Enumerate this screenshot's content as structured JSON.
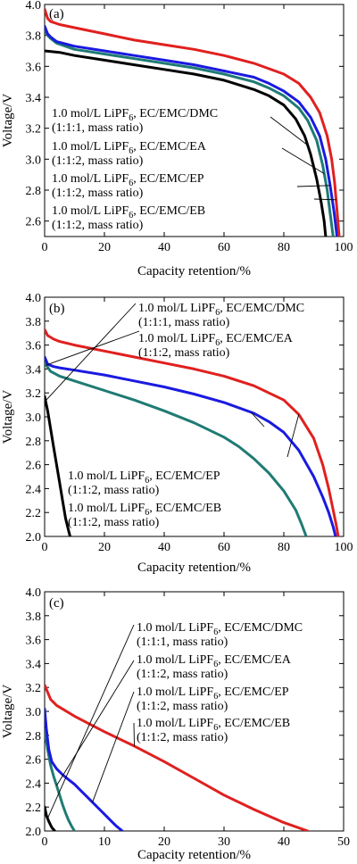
{
  "chart_data": [
    {
      "panel_label": "(a)",
      "type": "line",
      "xlabel": "Capacity retention/%",
      "ylabel": "Voltage/V",
      "xlim": [
        0,
        100
      ],
      "ylim": [
        2.5,
        4.0
      ],
      "xticks": [
        0,
        20,
        40,
        60,
        80,
        100
      ],
      "xtick_labels": [
        "0",
        "20",
        "40",
        "60",
        "80",
        "100"
      ],
      "yticks": [
        2.6,
        2.8,
        3.0,
        3.2,
        3.4,
        3.6,
        3.8,
        4.0
      ],
      "ytick_labels": [
        "2.6",
        "2.8",
        "3.0",
        "3.2",
        "3.4",
        "3.6",
        "3.8",
        "4.0"
      ],
      "grid": false,
      "annotations": [
        {
          "line1": "1.0 mol/L LiPF",
          "sub": "6",
          "line1b": ", EC/EMC/DMC",
          "line2": "(1:1:1, mass ratio)",
          "color": "#000000"
        },
        {
          "line1": "1.0 mol/L LiPF",
          "sub": "6",
          "line1b": ", EC/EMC/EA",
          "line2": "(1:1:2, mass ratio)",
          "color": "#1a1ae0"
        },
        {
          "line1": "1.0 mol/L LiPF",
          "sub": "6",
          "line1b": ", EC/EMC/EP",
          "line2": "(1:1:2, mass ratio)",
          "color": "#1f7b73"
        },
        {
          "line1": "1.0 mol/L LiPF",
          "sub": "6",
          "line1b": ", EC/EMC/EB",
          "line2": "(1:1:2, mass ratio)",
          "color": "#e0201f"
        }
      ],
      "series": [
        {
          "color": "#000000",
          "x": [
            0,
            5,
            10,
            20,
            30,
            40,
            50,
            60,
            70,
            75,
            80,
            84,
            87,
            89,
            91,
            92.5,
            93.5,
            94
          ],
          "y": [
            3.7,
            3.69,
            3.67,
            3.64,
            3.61,
            3.58,
            3.55,
            3.51,
            3.45,
            3.41,
            3.35,
            3.26,
            3.15,
            3.03,
            2.87,
            2.72,
            2.6,
            2.5
          ]
        },
        {
          "color": "#1f7b73",
          "x": [
            0,
            1,
            2,
            4,
            10,
            20,
            30,
            40,
            50,
            60,
            70,
            75,
            80,
            85,
            88,
            91,
            93,
            94.5,
            95.5,
            96.5
          ],
          "y": [
            3.84,
            3.8,
            3.78,
            3.75,
            3.71,
            3.68,
            3.65,
            3.62,
            3.59,
            3.55,
            3.5,
            3.46,
            3.41,
            3.33,
            3.25,
            3.12,
            2.96,
            2.8,
            2.65,
            2.5
          ]
        },
        {
          "color": "#1a1ae0",
          "x": [
            0,
            1,
            2,
            4,
            10,
            20,
            30,
            40,
            50,
            60,
            70,
            75,
            80,
            85,
            89,
            92,
            94,
            95.5,
            96.8,
            97.8
          ],
          "y": [
            3.86,
            3.81,
            3.79,
            3.76,
            3.73,
            3.7,
            3.67,
            3.64,
            3.61,
            3.57,
            3.53,
            3.49,
            3.44,
            3.37,
            3.27,
            3.15,
            3.0,
            2.83,
            2.66,
            2.5
          ]
        },
        {
          "color": "#e0201f",
          "x": [
            0,
            0.5,
            1,
            2,
            5,
            10,
            20,
            30,
            40,
            50,
            60,
            70,
            80,
            85,
            89,
            92,
            94.5,
            96,
            97,
            97.8,
            98.5
          ],
          "y": [
            3.97,
            3.94,
            3.91,
            3.89,
            3.87,
            3.85,
            3.81,
            3.77,
            3.74,
            3.71,
            3.67,
            3.62,
            3.55,
            3.49,
            3.4,
            3.3,
            3.15,
            3.0,
            2.85,
            2.67,
            2.5
          ]
        }
      ]
    },
    {
      "panel_label": "(b)",
      "type": "line",
      "xlabel": "Capacity retention/%",
      "ylabel": "Voltage/V",
      "xlim": [
        0,
        100
      ],
      "ylim": [
        2.0,
        4.0
      ],
      "xticks": [
        0,
        20,
        40,
        60,
        80,
        100
      ],
      "xtick_labels": [
        "0",
        "20",
        "40",
        "60",
        "80",
        "100"
      ],
      "yticks": [
        2.0,
        2.2,
        2.4,
        2.6,
        2.8,
        3.0,
        3.2,
        3.4,
        3.6,
        3.8,
        4.0
      ],
      "ytick_labels": [
        "2.0",
        "2.2",
        "2.4",
        "2.6",
        "2.8",
        "3.0",
        "3.2",
        "3.4",
        "3.6",
        "3.8",
        "4.0"
      ],
      "grid": false,
      "annotations": [
        {
          "line1": "1.0 mol/L LiPF",
          "sub": "6",
          "line1b": ", EC/EMC/DMC",
          "line2": "(1:1:1, mass ratio)",
          "color": "#000000"
        },
        {
          "line1": "1.0 mol/L LiPF",
          "sub": "6",
          "line1b": ", EC/EMC/EA",
          "line2": "(1:1:2, mass ratio)",
          "color": "#1a1ae0"
        },
        {
          "line1": "1.0 mol/L LiPF",
          "sub": "6",
          "line1b": ", EC/EMC/EP",
          "line2": "(1:1:2, mass ratio)",
          "color": "#1f7b73"
        },
        {
          "line1": "1.0 mol/L LiPF",
          "sub": "6",
          "line1b": ", EC/EMC/EB",
          "line2": "(1:1:2, mass ratio)",
          "color": "#e0201f"
        }
      ],
      "series": [
        {
          "color": "#000000",
          "x": [
            0,
            1,
            2,
            3,
            4,
            5,
            6,
            7,
            8,
            8.5
          ],
          "y": [
            3.17,
            3.05,
            2.9,
            2.75,
            2.6,
            2.45,
            2.3,
            2.15,
            2.05,
            2.0
          ]
        },
        {
          "color": "#1f7b73",
          "x": [
            0,
            2,
            5,
            10,
            20,
            30,
            40,
            50,
            60,
            65,
            70,
            75,
            80,
            84,
            86,
            87.5
          ],
          "y": [
            3.45,
            3.38,
            3.34,
            3.3,
            3.22,
            3.14,
            3.05,
            2.95,
            2.83,
            2.75,
            2.65,
            2.53,
            2.38,
            2.22,
            2.1,
            2.0
          ]
        },
        {
          "color": "#1a1ae0",
          "x": [
            0,
            1,
            3,
            5,
            10,
            20,
            30,
            40,
            50,
            60,
            70,
            75,
            80,
            85,
            90,
            93,
            95,
            96.5,
            97.3
          ],
          "y": [
            3.5,
            3.44,
            3.42,
            3.41,
            3.39,
            3.35,
            3.3,
            3.25,
            3.19,
            3.12,
            3.03,
            2.96,
            2.87,
            2.72,
            2.5,
            2.33,
            2.2,
            2.08,
            2.0
          ]
        },
        {
          "color": "#e0201f",
          "x": [
            0,
            1,
            3,
            5,
            10,
            20,
            30,
            40,
            50,
            60,
            70,
            80,
            85,
            90,
            93,
            95,
            96.5,
            97.5,
            98.2
          ],
          "y": [
            3.73,
            3.68,
            3.65,
            3.63,
            3.6,
            3.55,
            3.5,
            3.45,
            3.4,
            3.34,
            3.26,
            3.14,
            3.02,
            2.82,
            2.6,
            2.4,
            2.22,
            2.1,
            2.0
          ]
        }
      ]
    },
    {
      "panel_label": "(c)",
      "type": "line",
      "xlabel": "Capacity retention/%",
      "ylabel": "Voltage/V",
      "xlim": [
        0,
        50
      ],
      "ylim": [
        2.0,
        4.0
      ],
      "xticks": [
        0,
        10,
        20,
        30,
        40,
        50
      ],
      "xtick_labels": [
        "0",
        "10",
        "20",
        "30",
        "40",
        "50"
      ],
      "yticks": [
        2.0,
        2.2,
        2.4,
        2.6,
        2.8,
        3.0,
        3.2,
        3.4,
        3.6,
        3.8,
        4.0
      ],
      "ytick_labels": [
        "2.0",
        "2.2",
        "2.4",
        "2.6",
        "2.8",
        "3.0",
        "3.2",
        "3.4",
        "3.6",
        "3.8",
        "4.0"
      ],
      "grid": false,
      "annotations": [
        {
          "line1": "1.0 mol/L LiPF",
          "sub": "6",
          "line1b": ", EC/EMC/DMC",
          "line2": "(1:1:1, mass ratio)",
          "color": "#000000"
        },
        {
          "line1": "1.0 mol/L LiPF",
          "sub": "6",
          "line1b": ", EC/EMC/EA",
          "line2": "(1:1:2, mass ratio)",
          "color": "#1a1ae0"
        },
        {
          "line1": "1.0 mol/L LiPF",
          "sub": "6",
          "line1b": ", EC/EMC/EP",
          "line2": "(1:1:2, mass ratio)",
          "color": "#1f7b73"
        },
        {
          "line1": "1.0 mol/L LiPF",
          "sub": "6",
          "line1b": ", EC/EMC/EB",
          "line2": "(1:1:2, mass ratio)",
          "color": "#e0201f"
        }
      ],
      "series": [
        {
          "color": "#000000",
          "x": [
            0,
            0.3,
            0.7,
            1.2,
            1.7
          ],
          "y": [
            2.2,
            2.13,
            2.08,
            2.03,
            2.0
          ]
        },
        {
          "color": "#1f7b73",
          "x": [
            0,
            0.5,
            1,
            1.5,
            2,
            2.5,
            3,
            3.5,
            4,
            4.5,
            5
          ],
          "y": [
            2.85,
            2.68,
            2.55,
            2.46,
            2.38,
            2.3,
            2.22,
            2.15,
            2.09,
            2.04,
            2.0
          ]
        },
        {
          "color": "#1a1ae0",
          "x": [
            0,
            0.3,
            0.7,
            1.2,
            2,
            3,
            4,
            5,
            6,
            7,
            8,
            9,
            10,
            11,
            12,
            13
          ],
          "y": [
            3.02,
            2.85,
            2.68,
            2.58,
            2.52,
            2.47,
            2.43,
            2.39,
            2.34,
            2.29,
            2.24,
            2.19,
            2.14,
            2.09,
            2.04,
            2.0
          ]
        },
        {
          "color": "#e0201f",
          "x": [
            0,
            0.5,
            1,
            2,
            5,
            10,
            15,
            20,
            25,
            30,
            35,
            40,
            44
          ],
          "y": [
            3.22,
            3.16,
            3.1,
            3.05,
            2.96,
            2.83,
            2.71,
            2.58,
            2.44,
            2.3,
            2.18,
            2.07,
            2.0
          ]
        }
      ]
    }
  ]
}
